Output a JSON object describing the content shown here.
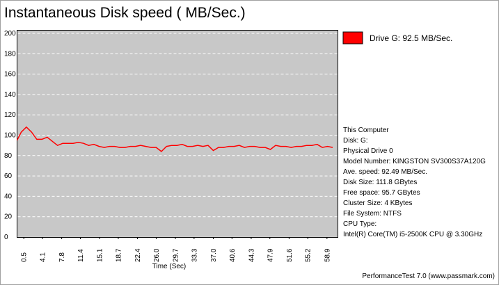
{
  "chart_data": {
    "type": "line",
    "title": "Instantaneous Disk speed ( MB/Sec.)",
    "xlabel": "Time (Sec)",
    "x": [
      -0.8,
      0,
      1,
      2,
      3,
      4,
      5,
      6,
      7,
      8,
      9,
      10,
      11,
      12,
      13,
      14,
      15,
      16,
      17,
      18,
      19,
      20,
      21,
      22,
      23,
      24,
      25,
      26,
      27,
      28,
      29,
      30,
      31,
      32,
      33,
      34,
      35,
      36,
      37,
      38,
      39,
      40,
      41,
      42,
      43,
      44,
      45,
      46,
      47,
      48,
      49,
      50,
      51,
      52,
      53,
      54,
      55,
      56,
      57,
      58,
      59,
      60
    ],
    "series": [
      {
        "name": "Drive G: 92.5 MB/Sec.",
        "color": "#ff0000",
        "values": [
          95,
          103,
          108,
          103,
          96,
          96,
          98,
          94,
          90,
          92,
          92,
          92,
          93,
          92,
          90,
          91,
          89,
          88,
          89,
          89,
          88,
          88,
          89,
          89,
          90,
          89,
          88,
          88,
          84,
          89,
          90,
          90,
          91,
          89,
          89,
          90,
          89,
          90,
          85,
          88,
          88,
          89,
          89,
          90,
          88,
          89,
          89,
          88,
          88,
          86,
          90,
          89,
          89,
          88,
          89,
          89,
          90,
          90,
          91,
          88,
          89,
          88
        ]
      }
    ],
    "xlim": [
      -0.8,
      61
    ],
    "xticks": [
      0.5,
      4.1,
      7.8,
      11.4,
      15.1,
      18.7,
      22.4,
      {
        "value": 26,
        "label": "26.0"
      },
      29.7,
      33.3,
      {
        "value": 37,
        "label": "37.0"
      },
      40.6,
      44.3,
      47.9,
      51.6,
      55.2,
      58.9
    ],
    "ylim": [
      0,
      200
    ],
    "yticks": [
      0,
      20,
      40,
      60,
      80,
      100,
      120,
      140,
      160,
      180,
      200
    ],
    "grid": true
  },
  "info": [
    "This Computer",
    "Disk: G:",
    "Physical Drive 0",
    "Model Number: KINGSTON SV300S37A120G",
    "Ave. speed: 92.49 MB/Sec.",
    "Disk Size: 111.8 GBytes",
    "Free space: 95.7 GBytes",
    "Cluster Size: 4 KBytes",
    "File System: NTFS",
    "CPU Type:",
    "Intel(R) Core(TM) i5-2500K CPU @ 3.30GHz"
  ],
  "footer": "PerformanceTest 7.0 (www.passmark.com)"
}
